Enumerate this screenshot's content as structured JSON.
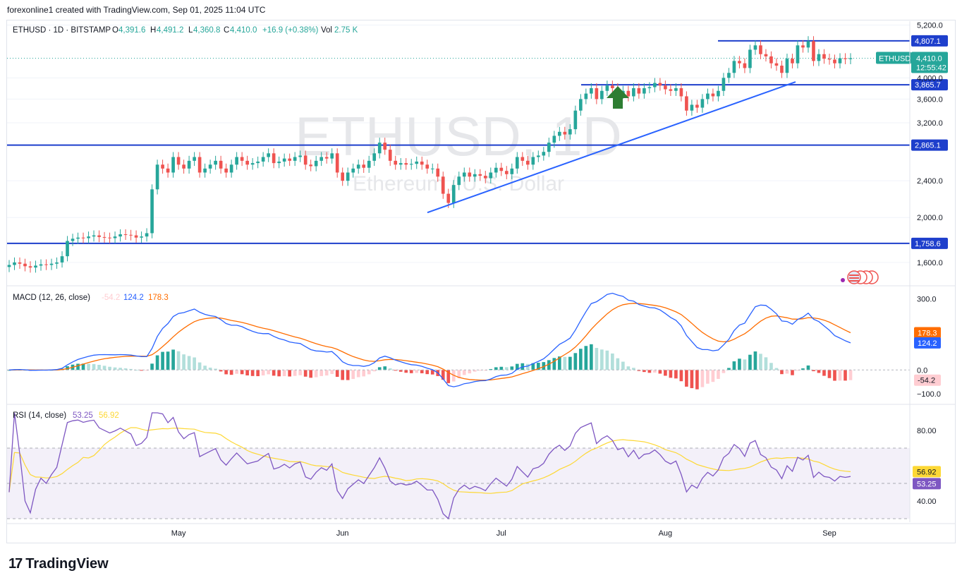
{
  "header": {
    "created_line": "forexonline1 created with TradingView.com, Sep 01, 2025 11:04 UTC"
  },
  "legend": {
    "symbol": "ETHUSD · 1D · BITSTAMP",
    "o_label": "O",
    "o": "4,391.6",
    "h_label": "H",
    "h": "4,491.2",
    "l_label": "L",
    "l": "4,360.8",
    "c_label": "C",
    "c": "4,410.0",
    "change": "+16.9 (+0.38%)",
    "vol_label": "Vol",
    "vol": "2.75 K"
  },
  "watermark": {
    "symbol": "ETHUSD, 1D",
    "description": "Ethereum / U.S. Dollar"
  },
  "footer": {
    "logo_text": "TradingView",
    "logo_mark": "17"
  },
  "colors": {
    "up": "#26a69a",
    "down": "#ef5350",
    "hline": "#1e3fcc",
    "trendline": "#2962ff",
    "macd_line": "#2962ff",
    "signal_line": "#ff6d00",
    "hist_up_strong": "#26a69a",
    "hist_up_weak": "#b2dfdb",
    "hist_down_strong": "#ef5350",
    "hist_down_weak": "#ffcdd2",
    "rsi_line": "#7e57c2",
    "rsi_ma": "#fdd835",
    "arrow": "#2e7d32"
  },
  "chart_data": [
    {
      "type": "candlestick",
      "title": "ETHUSD · 1D · BITSTAMP",
      "x_ticks": [
        "May",
        "Jun",
        "Jul",
        "Aug",
        "Sep"
      ],
      "y_ticks": [
        "5,200.0",
        "4,000.0",
        "3,600.0",
        "3,200.0",
        "2,400.0",
        "2,000.0",
        "1,600.0"
      ],
      "ylim": [
        1450,
        5300
      ],
      "y_scale": "log",
      "closes": [
        1580,
        1600,
        1590,
        1570,
        1560,
        1575,
        1585,
        1580,
        1590,
        1600,
        1650,
        1780,
        1800,
        1810,
        1805,
        1820,
        1830,
        1815,
        1810,
        1805,
        1820,
        1840,
        1835,
        1830,
        1810,
        1820,
        1850,
        2300,
        2600,
        2550,
        2500,
        2700,
        2600,
        2550,
        2650,
        2700,
        2500,
        2550,
        2600,
        2650,
        2550,
        2500,
        2600,
        2700,
        2650,
        2600,
        2620,
        2640,
        2700,
        2750,
        2620,
        2640,
        2680,
        2650,
        2700,
        2720,
        2600,
        2580,
        2650,
        2700,
        2680,
        2750,
        2500,
        2400,
        2500,
        2550,
        2600,
        2560,
        2650,
        2750,
        2900,
        2800,
        2650,
        2600,
        2620,
        2600,
        2610,
        2640,
        2600,
        2550,
        2550,
        2450,
        2250,
        2150,
        2350,
        2450,
        2500,
        2450,
        2480,
        2460,
        2430,
        2500,
        2560,
        2520,
        2480,
        2550,
        2700,
        2650,
        2600,
        2700,
        2720,
        2770,
        2900,
        3000,
        3060,
        3020,
        3100,
        3400,
        3600,
        3700,
        3800,
        3600,
        3750,
        3850,
        3800,
        3700,
        3750,
        3650,
        3800,
        3700,
        3800,
        3820,
        3900,
        3850,
        3780,
        3750,
        3800,
        3650,
        3400,
        3500,
        3450,
        3600,
        3700,
        3650,
        3750,
        4000,
        4100,
        4350,
        4300,
        4200,
        4600,
        4700,
        4500,
        4450,
        4300,
        4250,
        4100,
        4400,
        4300,
        4700,
        4650,
        4800,
        4350,
        4500,
        4400,
        4380,
        4300,
        4410,
        4390,
        4410
      ]
    },
    {
      "type": "line",
      "title": "MACD (12, 26, close)",
      "legend_values": [
        "-54.2",
        "124.2",
        "178.3"
      ],
      "y_ticks": [
        "300.0",
        "0.0",
        "-100.0"
      ],
      "ylim": [
        -130,
        340
      ],
      "label_macd": "124.2",
      "label_signal": "178.3",
      "label_hist": "-54.2",
      "label_top": "300.0",
      "label_zero": "0.0",
      "label_neg": "−100.0"
    },
    {
      "type": "line",
      "title": "RSI (14, close)",
      "legend_values": [
        "53.25",
        "56.92"
      ],
      "y_ticks": [
        "80.00",
        "40.00"
      ],
      "ylim": [
        28,
        92
      ],
      "upper_band": 70,
      "middle_band": 50,
      "lower_band": 30,
      "label_rsi": "53.25",
      "label_ma": "56.92"
    }
  ],
  "price_levels": [
    {
      "label": "4,807.1",
      "value": 4807.1
    },
    {
      "label": "3,865.7",
      "value": 3865.7
    },
    {
      "label": "2,865.1",
      "value": 2865.1
    },
    {
      "label": "1,758.6",
      "value": 1758.6
    }
  ],
  "last_price": {
    "symbol_tag": "ETHUSD",
    "price": "4,410.0",
    "countdown": "12:55:42",
    "value": 4410
  }
}
